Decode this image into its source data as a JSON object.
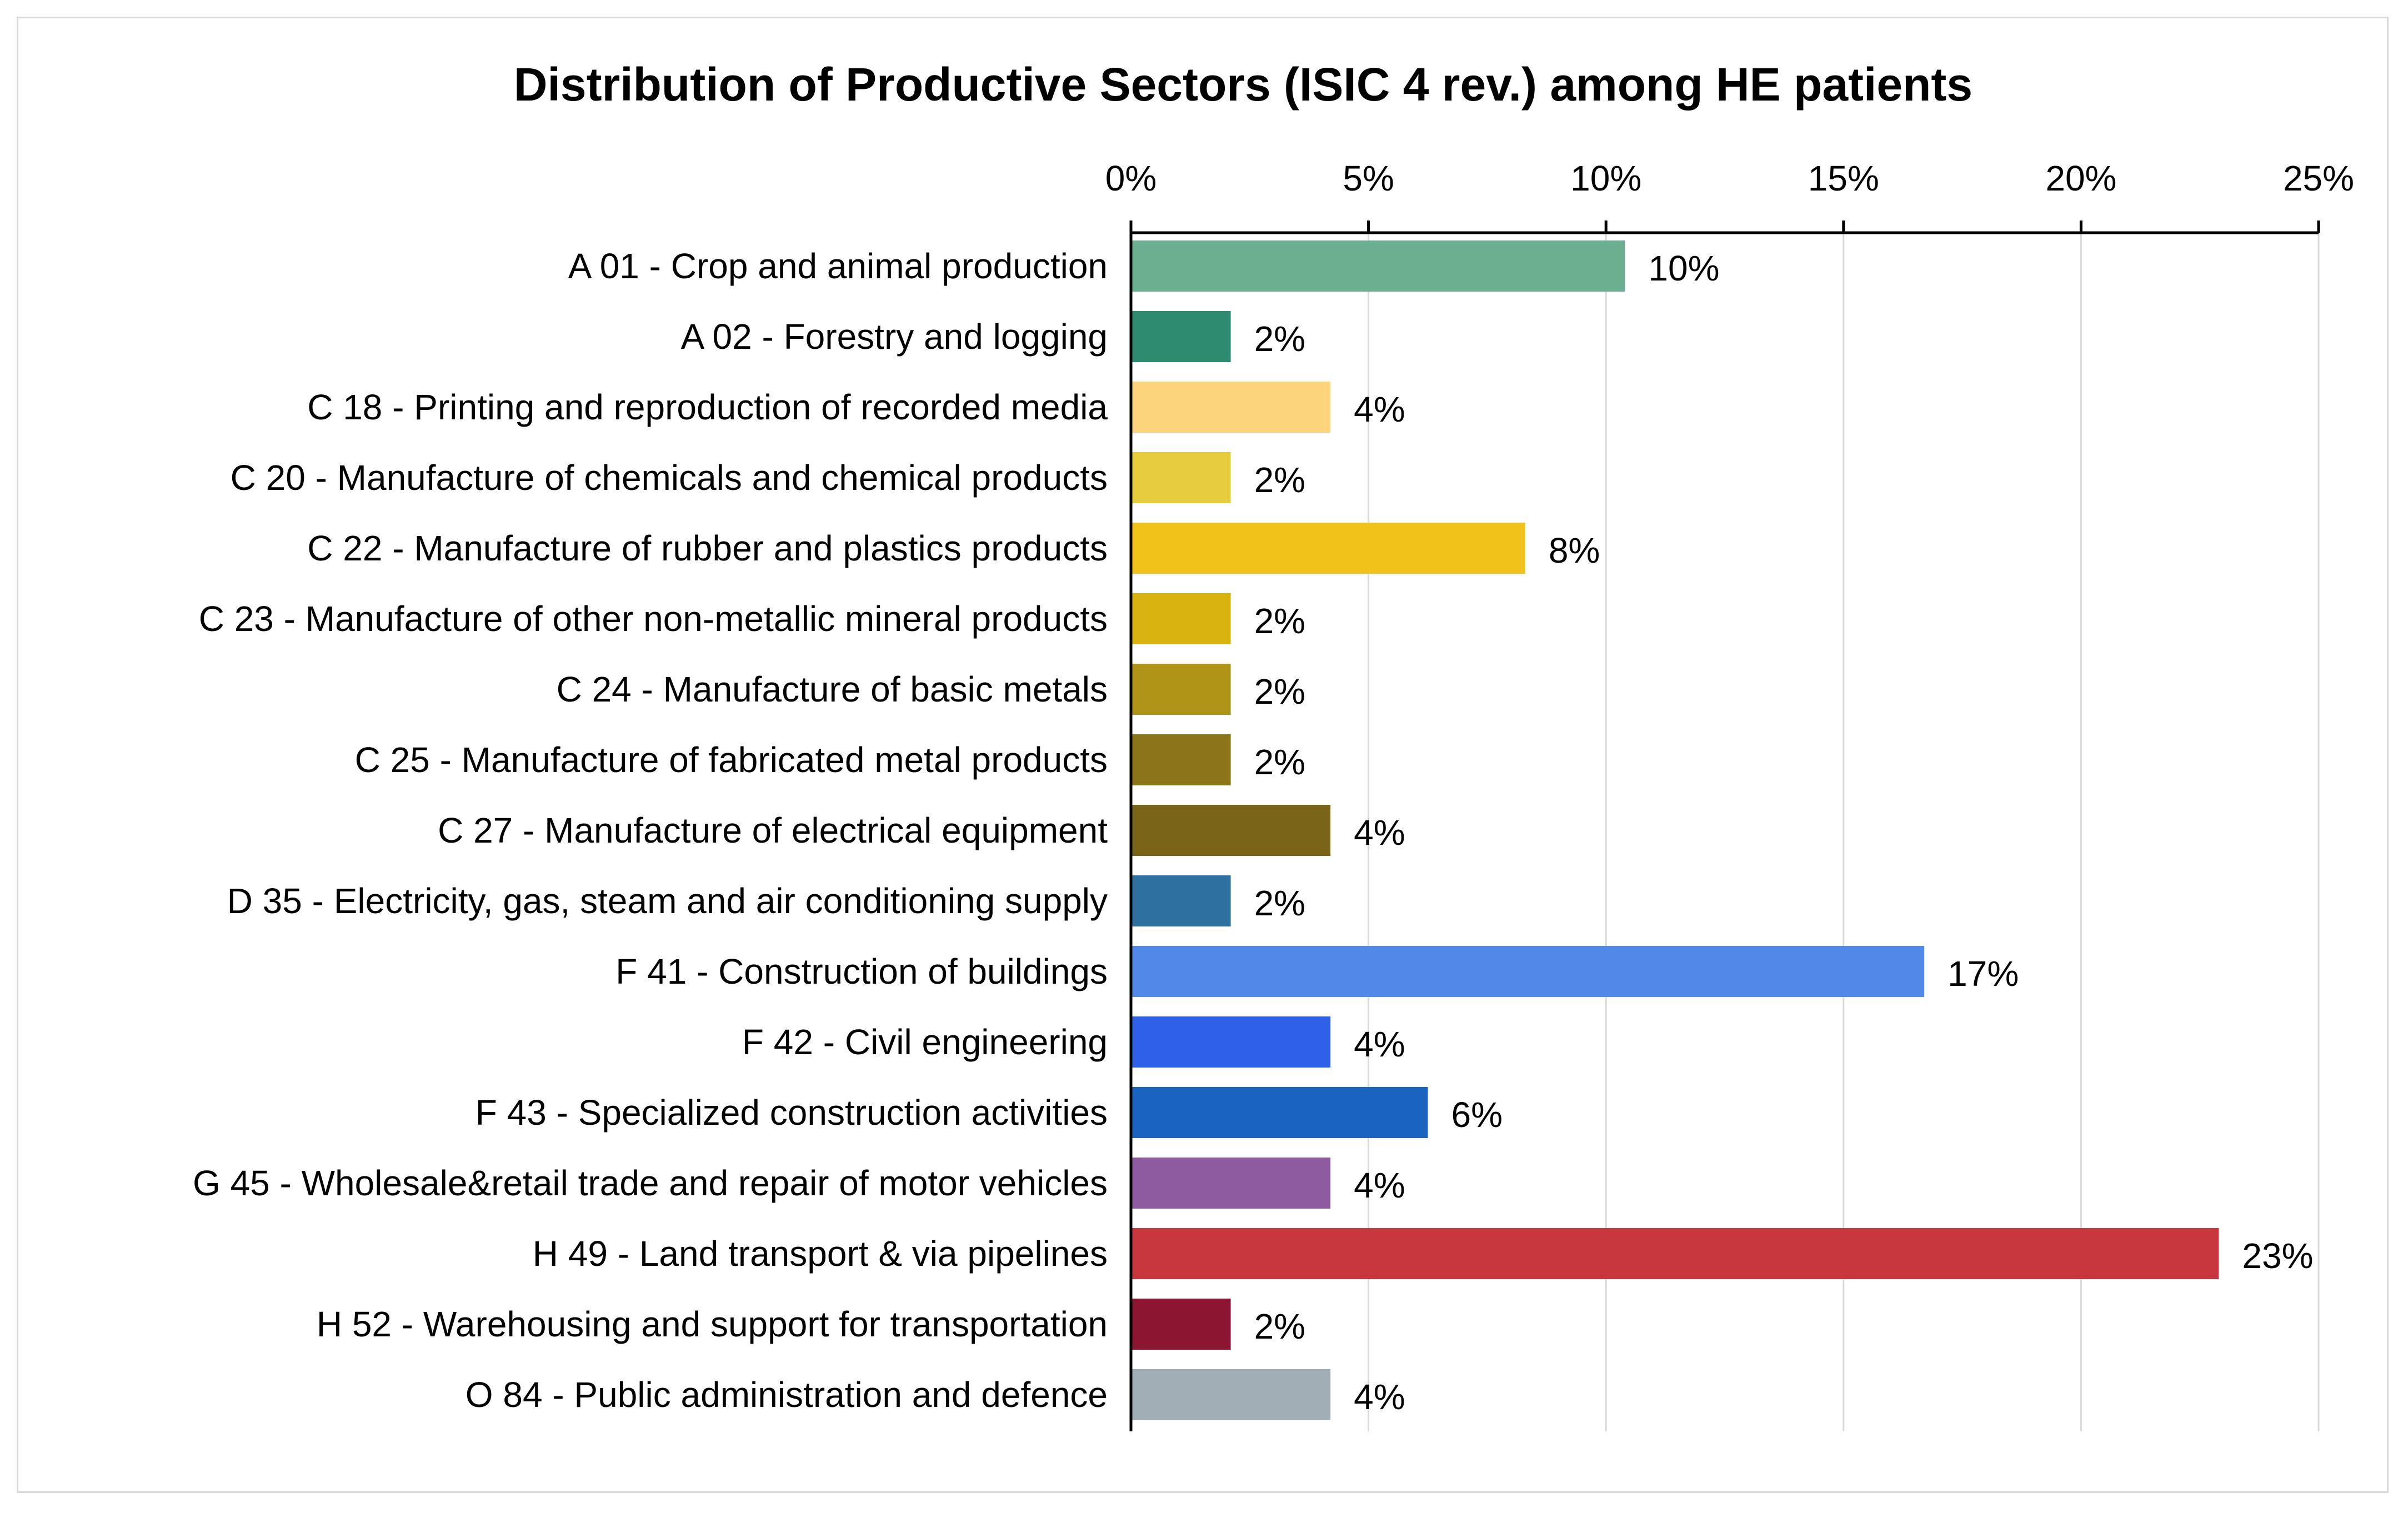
{
  "chart_data": {
    "type": "bar",
    "orientation": "horizontal",
    "title": "Distribution of Productive Sectors (ISIC 4 rev.) among HE patients",
    "xlabel": "",
    "ylabel": "",
    "xlim": [
      0,
      25
    ],
    "x_ticks": [
      0,
      5,
      10,
      15,
      20,
      25
    ],
    "x_tick_labels": [
      "0%",
      "5%",
      "10%",
      "15%",
      "20%",
      "25%"
    ],
    "x_axis_position": "top",
    "grid": true,
    "categories": [
      "A 01 - Crop and animal production",
      "A 02 - Forestry and logging",
      "C 18 - Printing and reproduction of recorded media",
      "C 20 - Manufacture of chemicals and chemical products",
      "C 22 - Manufacture of rubber and plastics products",
      "C 23 - Manufacture of other non-metallic mineral products",
      "C 24 - Manufacture of basic metals",
      "C 25 - Manufacture of fabricated metal products",
      "C 27 - Manufacture of electrical equipment",
      "D 35 - Electricity, gas, steam and air conditioning supply",
      "F 41 - Construction of buildings",
      "F 42 - Civil engineering",
      "F 43 - Specialized construction activities",
      "G 45 - Wholesale&retail trade and repair of motor vehicles",
      "H 49 - Land transport & via pipelines",
      "H 52 - Warehousing and support for transportation",
      "O 84 - Public administration and defence"
    ],
    "values": [
      10.4,
      2.1,
      4.2,
      2.1,
      8.3,
      2.1,
      2.1,
      2.1,
      4.2,
      2.1,
      16.7,
      4.2,
      6.25,
      4.2,
      22.9,
      2.1,
      4.2
    ],
    "value_labels": [
      "10%",
      "2%",
      "4%",
      "2%",
      "8%",
      "2%",
      "2%",
      "2%",
      "4%",
      "2%",
      "17%",
      "4%",
      "6%",
      "4%",
      "23%",
      "2%",
      "4%"
    ],
    "colors": [
      "#6aaf90",
      "#2e8b70",
      "#fcd47c",
      "#e8cc40",
      "#f0c21a",
      "#d9b410",
      "#b09418",
      "#8c7418",
      "#7a6418",
      "#2e70a0",
      "#5289e8",
      "#2e60e8",
      "#1a64c0",
      "#8e5aa0",
      "#c8363e",
      "#8c1532",
      "#a2aeb6"
    ]
  }
}
